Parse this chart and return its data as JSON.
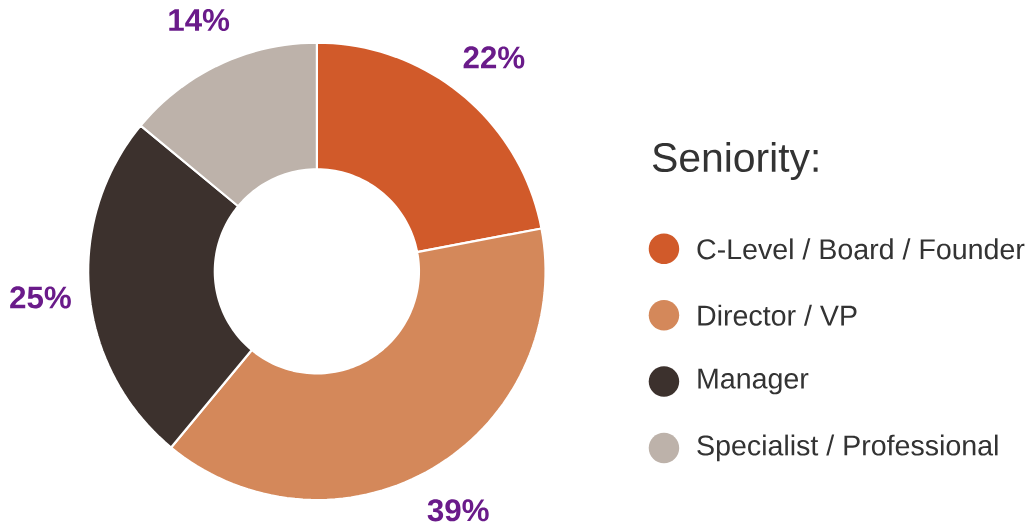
{
  "chart_data": {
    "type": "donut",
    "legend_title": "Seniority:",
    "legend": "right",
    "categories": [
      "C-Level / Board / Founder",
      "Director / VP",
      "Manager",
      "Specialist / Professional"
    ],
    "values": [
      22,
      39,
      25,
      14
    ],
    "colors": [
      "#d15a2a",
      "#d4885a",
      "#3c312d",
      "#bdb2aa"
    ],
    "value_labels": [
      "22%",
      "39%",
      "25%",
      "14%"
    ]
  }
}
